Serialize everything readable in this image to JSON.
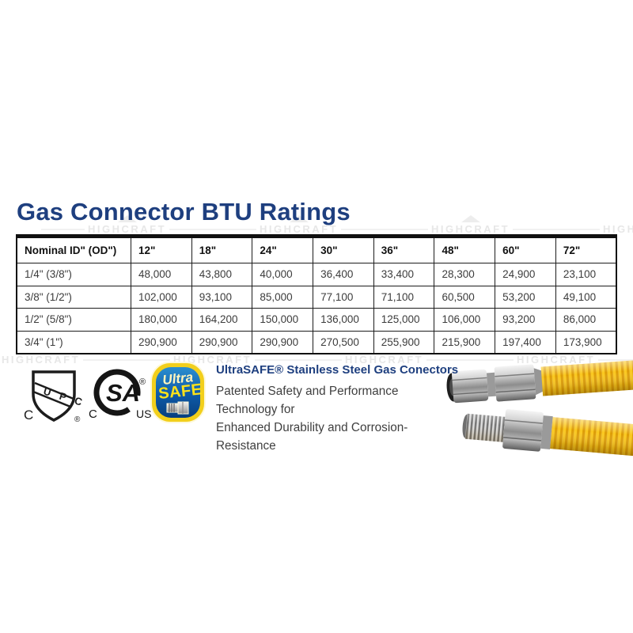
{
  "title": "Gas Connector BTU Ratings",
  "watermark": {
    "text": "HIGHCRAFT"
  },
  "table": {
    "columns": [
      "Nominal ID\" (OD\")",
      "12\"",
      "18\"",
      "24\"",
      "30\"",
      "36\"",
      "48\"",
      "60\"",
      "72\""
    ],
    "rows": [
      {
        "label": "1/4\" (3/8\")",
        "values": [
          "48,000",
          "43,800",
          "40,000",
          "36,400",
          "33,400",
          "28,300",
          "24,900",
          "23,100"
        ]
      },
      {
        "label": "3/8\" (1/2\")",
        "values": [
          "102,000",
          "93,100",
          "85,000",
          "77,100",
          "71,100",
          "60,500",
          "53,200",
          "49,100"
        ]
      },
      {
        "label": "1/2\" (5/8\")",
        "values": [
          "180,000",
          "164,200",
          "150,000",
          "136,000",
          "125,000",
          "106,000",
          "93,200",
          "86,000"
        ]
      },
      {
        "label": "3/4\" (1\")",
        "values": [
          "290,900",
          "290,900",
          "290,900",
          "270,500",
          "255,900",
          "215,900",
          "197,400",
          "173,900"
        ]
      }
    ]
  },
  "certifications": {
    "upc": {
      "band_label": "U P C",
      "c_label": "C",
      "registered": "®"
    },
    "csa": {
      "monogram": "SA",
      "c_label": "C",
      "us_label": "US",
      "registered": "®"
    },
    "ultrasafe": {
      "line1": "Ultra",
      "line2": "SAFE"
    }
  },
  "product": {
    "heading": "UltraSAFE® Stainless Steel Gas Conectors",
    "line1": "Patented Safety and Performance Technology for",
    "line2": "Enhanced Durability and Corrosion-Resistance"
  },
  "colors": {
    "title_navy": "#1e3f7f",
    "table_border": "#101010",
    "cell_text": "#3c3c3c",
    "watermark_gray": "#e7e7e7",
    "hose_yellow": "#f6bd10",
    "hose_ridge": "#dd9c05",
    "fitting_silver": "#b9b9b9",
    "ultrasafe_blue": "#0e5aa7",
    "ultrasafe_yellow": "#f2cf1b"
  }
}
